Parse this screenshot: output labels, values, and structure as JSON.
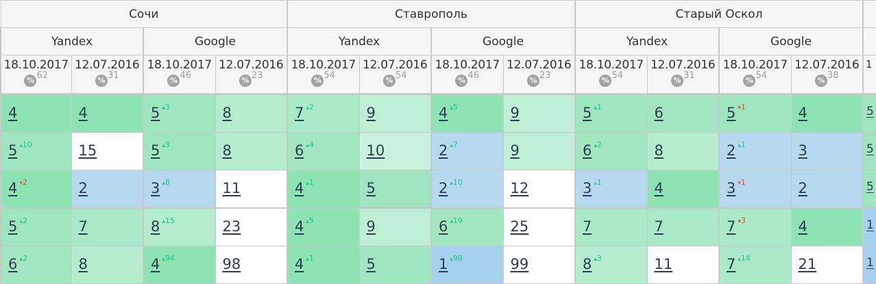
{
  "pct_icon": "percent-icon",
  "colors": {
    "up": "#20c997",
    "down": "#e74c3c"
  },
  "cities": [
    {
      "name": "Сочи",
      "engines": [
        {
          "name": "Yandex",
          "dates": [
            {
              "date": "18.10.2017",
              "pct": "62"
            },
            {
              "date": "12.07.2016",
              "pct": "31"
            }
          ]
        },
        {
          "name": "Google",
          "dates": [
            {
              "date": "18.10.2017",
              "pct": "46"
            },
            {
              "date": "12.07.2016",
              "pct": "23"
            }
          ]
        }
      ]
    },
    {
      "name": "Ставрополь",
      "engines": [
        {
          "name": "Yandex",
          "dates": [
            {
              "date": "18.10.2017",
              "pct": "54"
            },
            {
              "date": "12.07.2016",
              "pct": "54"
            }
          ]
        },
        {
          "name": "Google",
          "dates": [
            {
              "date": "18.10.2017",
              "pct": "46"
            },
            {
              "date": "12.07.2016",
              "pct": "23"
            }
          ]
        }
      ]
    },
    {
      "name": "Старый Оскол",
      "engines": [
        {
          "name": "Yandex",
          "dates": [
            {
              "date": "18.10.2017",
              "pct": "54"
            },
            {
              "date": "12.07.2016",
              "pct": "31"
            }
          ]
        },
        {
          "name": "Google",
          "dates": [
            {
              "date": "18.10.2017",
              "pct": "54"
            },
            {
              "date": "12.07.2016",
              "pct": "38"
            }
          ]
        }
      ]
    }
  ],
  "partial_column": {
    "date": "1",
    "values": [
      "5",
      "5",
      "5",
      "1",
      "1"
    ]
  },
  "rows": [
    [
      {
        "v": "4"
      },
      {
        "v": "4"
      },
      {
        "v": "5",
        "d": "3",
        "dir": "up"
      },
      {
        "v": "8"
      },
      {
        "v": "7",
        "d": "2",
        "dir": "up"
      },
      {
        "v": "9"
      },
      {
        "v": "4",
        "d": "5",
        "dir": "up"
      },
      {
        "v": "9"
      },
      {
        "v": "5",
        "d": "1",
        "dir": "up"
      },
      {
        "v": "6"
      },
      {
        "v": "5",
        "d": "1",
        "dir": "down"
      },
      {
        "v": "4"
      }
    ],
    [
      {
        "v": "5",
        "d": "10",
        "dir": "up"
      },
      {
        "v": "15"
      },
      {
        "v": "5",
        "d": "3",
        "dir": "up"
      },
      {
        "v": "8"
      },
      {
        "v": "6",
        "d": "4",
        "dir": "up"
      },
      {
        "v": "10"
      },
      {
        "v": "2",
        "d": "7",
        "dir": "up"
      },
      {
        "v": "9"
      },
      {
        "v": "6",
        "d": "2",
        "dir": "up"
      },
      {
        "v": "8"
      },
      {
        "v": "2",
        "d": "1",
        "dir": "up"
      },
      {
        "v": "3"
      }
    ],
    [
      {
        "v": "4",
        "d": "2",
        "dir": "down"
      },
      {
        "v": "2"
      },
      {
        "v": "3",
        "d": "8",
        "dir": "up"
      },
      {
        "v": "11"
      },
      {
        "v": "4",
        "d": "1",
        "dir": "up"
      },
      {
        "v": "5"
      },
      {
        "v": "2",
        "d": "10",
        "dir": "up"
      },
      {
        "v": "12"
      },
      {
        "v": "3",
        "d": "1",
        "dir": "up"
      },
      {
        "v": "4"
      },
      {
        "v": "3",
        "d": "1",
        "dir": "down"
      },
      {
        "v": "2"
      }
    ],
    [
      {
        "v": "5",
        "d": "2",
        "dir": "up"
      },
      {
        "v": "7"
      },
      {
        "v": "8",
        "d": "15",
        "dir": "up"
      },
      {
        "v": "23"
      },
      {
        "v": "4",
        "d": "5",
        "dir": "up"
      },
      {
        "v": "9"
      },
      {
        "v": "6",
        "d": "19",
        "dir": "up"
      },
      {
        "v": "25"
      },
      {
        "v": "7"
      },
      {
        "v": "7"
      },
      {
        "v": "7",
        "d": "3",
        "dir": "down"
      },
      {
        "v": "4"
      }
    ],
    [
      {
        "v": "6",
        "d": "2",
        "dir": "up"
      },
      {
        "v": "8"
      },
      {
        "v": "4",
        "d": "94",
        "dir": "up"
      },
      {
        "v": "98"
      },
      {
        "v": "4",
        "d": "1",
        "dir": "up"
      },
      {
        "v": "5"
      },
      {
        "v": "1",
        "d": "98",
        "dir": "up"
      },
      {
        "v": "99"
      },
      {
        "v": "8",
        "d": "3",
        "dir": "up"
      },
      {
        "v": "11"
      },
      {
        "v": "7",
        "d": "14",
        "dir": "up"
      },
      {
        "v": "21"
      }
    ]
  ]
}
